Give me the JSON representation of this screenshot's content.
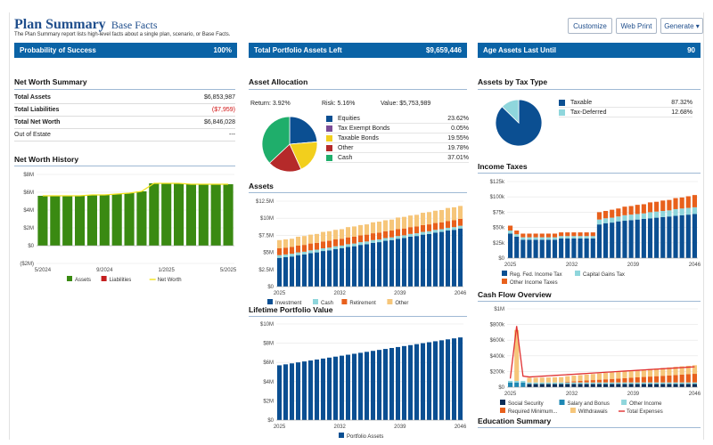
{
  "header": {
    "title": "Plan Summary",
    "subtitle": "Base Facts",
    "description": "The Plan Summary report lists high-level facts about a single plan, scenario, or Base Facts.",
    "buttons": {
      "customize": "Customize",
      "web_print": "Web Print",
      "generate": "Generate ▾"
    }
  },
  "kpis": [
    {
      "label": "Probability of Success",
      "value": "100%"
    },
    {
      "label": "Total Portfolio Assets Left",
      "value": "$9,659,446"
    },
    {
      "label": "Age Assets Last Until",
      "value": "90"
    }
  ],
  "net_worth_summary": {
    "title": "Net Worth Summary",
    "rows": [
      {
        "label": "Total Assets",
        "value": "$6,853,987"
      },
      {
        "label": "Total Liabilities",
        "value": "($7,959)"
      },
      {
        "label": "Total Net Worth",
        "value": "$6,846,028"
      },
      {
        "label": "Out of Estate",
        "value": "---"
      }
    ]
  },
  "asset_allocation": {
    "title": "Asset Allocation",
    "return_label": "Return: 3.92%",
    "risk_label": "Risk: 5.16%",
    "value_label": "Value: $5,753,989",
    "items": [
      {
        "name": "Equities",
        "pct": "23.62%",
        "value": 23.62,
        "color": "#0b4f92"
      },
      {
        "name": "Tax Exempt Bonds",
        "pct": "0.05%",
        "value": 0.05,
        "color": "#7b4c96"
      },
      {
        "name": "Taxable Bonds",
        "pct": "19.55%",
        "value": 19.55,
        "color": "#f2cf1d"
      },
      {
        "name": "Other",
        "pct": "19.78%",
        "value": 19.78,
        "color": "#b52a2a"
      },
      {
        "name": "Cash",
        "pct": "37.01%",
        "value": 37.01,
        "color": "#1fae6b"
      }
    ]
  },
  "assets_by_tax": {
    "title": "Assets by Tax Type",
    "items": [
      {
        "name": "Taxable",
        "pct": "87.32%",
        "value": 87.32,
        "color": "#0b4f92"
      },
      {
        "name": "Tax-Deferred",
        "pct": "12.68%",
        "value": 12.68,
        "color": "#8fd6dc"
      }
    ]
  },
  "sections": {
    "net_worth_history": "Net Worth History",
    "assets": "Assets",
    "lifetime_portfolio": "Lifetime Portfolio Value",
    "income_taxes": "Income Taxes",
    "cash_flow": "Cash Flow Overview",
    "education": "Education Summary"
  },
  "chart_data": [
    {
      "id": "net_worth_history",
      "type": "bar",
      "x_ticks": [
        "5/2024",
        "9/2024",
        "1/2025",
        "5/2025"
      ],
      "y_ticks": [
        "$8M",
        "$6M",
        "$4M",
        "$2M",
        "$0",
        "($2M)"
      ],
      "ylim": [
        -2,
        8
      ],
      "series": [
        {
          "name": "Assets",
          "color": "#3a8a12",
          "values": [
            5.6,
            5.6,
            5.6,
            5.6,
            5.7,
            5.7,
            5.8,
            5.9,
            6.1,
            7.0,
            7.0,
            7.0,
            6.9,
            6.9,
            6.9,
            6.9
          ]
        },
        {
          "name": "Liabilities",
          "color": "#c41e1e",
          "values": [
            0,
            0,
            0,
            0,
            0,
            0,
            0,
            0,
            0,
            0,
            0,
            0,
            0,
            0,
            0,
            0
          ]
        },
        {
          "name": "Net Worth",
          "color": "#f2e21d",
          "values": [
            5.6,
            5.6,
            5.6,
            5.6,
            5.7,
            5.7,
            5.8,
            5.9,
            6.1,
            7.0,
            7.0,
            7.0,
            6.9,
            6.9,
            6.9,
            6.9
          ]
        }
      ]
    },
    {
      "id": "assets",
      "type": "bar",
      "x_ticks": [
        "2025",
        "2032",
        "2039",
        "2046"
      ],
      "y_ticks": [
        "$12.5M",
        "$10M",
        "$7.5M",
        "$5M",
        "$2.5M",
        "$0"
      ],
      "ylim": [
        0,
        12.5
      ],
      "series": [
        {
          "name": "Investment",
          "color": "#0b4f92",
          "values": [
            4.2,
            4.3,
            4.4,
            4.6,
            4.7,
            4.9,
            5.0,
            5.2,
            5.3,
            5.5,
            5.6,
            5.8,
            5.9,
            6.1,
            6.2,
            6.4,
            6.5,
            6.7,
            6.8,
            7.0,
            7.1,
            7.3,
            7.4,
            7.6,
            7.7,
            7.9,
            8.0,
            8.2,
            8.3,
            8.5
          ]
        },
        {
          "name": "Cash",
          "color": "#8fd6dc",
          "values": [
            0.4,
            0.4,
            0.4,
            0.4,
            0.4,
            0.4,
            0.4,
            0.4,
            0.4,
            0.4,
            0.4,
            0.4,
            0.4,
            0.4,
            0.4,
            0.4,
            0.4,
            0.4,
            0.4,
            0.4,
            0.4,
            0.4,
            0.4,
            0.4,
            0.4,
            0.4,
            0.4,
            0.4,
            0.4,
            0.4
          ]
        },
        {
          "name": "Retirement",
          "color": "#e8601c",
          "values": [
            1.0,
            1.0,
            1.0,
            1.0,
            1.0,
            1.0,
            1.0,
            1.0,
            1.0,
            1.0,
            1.0,
            1.0,
            1.0,
            1.0,
            1.0,
            1.0,
            1.0,
            1.0,
            1.0,
            1.0,
            1.0,
            1.0,
            1.0,
            1.0,
            1.0,
            1.0,
            1.0,
            1.0,
            1.0,
            1.0
          ]
        },
        {
          "name": "Other",
          "color": "#f6c67a",
          "values": [
            1.2,
            1.2,
            1.2,
            1.3,
            1.3,
            1.3,
            1.3,
            1.4,
            1.4,
            1.4,
            1.4,
            1.5,
            1.5,
            1.5,
            1.5,
            1.6,
            1.6,
            1.6,
            1.6,
            1.7,
            1.7,
            1.7,
            1.7,
            1.8,
            1.8,
            1.8,
            1.8,
            1.9,
            1.9,
            1.9
          ]
        }
      ]
    },
    {
      "id": "lifetime_portfolio",
      "type": "bar",
      "x_ticks": [
        "2025",
        "2032",
        "2039",
        "2046"
      ],
      "y_ticks": [
        "$10M",
        "$8M",
        "$6M",
        "$4M",
        "$2M",
        "$0"
      ],
      "ylim": [
        0,
        10
      ],
      "series": [
        {
          "name": "Portfolio Assets",
          "color": "#0b4f92",
          "values": [
            5.7,
            5.8,
            5.9,
            6.0,
            6.1,
            6.2,
            6.3,
            6.4,
            6.5,
            6.6,
            6.7,
            6.8,
            6.9,
            7.0,
            7.1,
            7.2,
            7.3,
            7.4,
            7.5,
            7.6,
            7.7,
            7.8,
            7.9,
            8.0,
            8.1,
            8.2,
            8.3,
            8.4,
            8.5,
            8.6
          ]
        }
      ]
    },
    {
      "id": "income_taxes",
      "type": "bar",
      "x_ticks": [
        "2025",
        "2032",
        "2039",
        "2046"
      ],
      "y_ticks": [
        "$125k",
        "$100k",
        "$75k",
        "$50k",
        "$25k",
        "$0"
      ],
      "ylim": [
        0,
        125
      ],
      "series": [
        {
          "name": "Reg. Fed. Income Tax",
          "color": "#0b4f92",
          "values": [
            40,
            35,
            30,
            30,
            30,
            30,
            30,
            30,
            32,
            32,
            32,
            32,
            32,
            32,
            55,
            57,
            58,
            60,
            61,
            62,
            63,
            64,
            65,
            66,
            67,
            68,
            69,
            70,
            71,
            72
          ]
        },
        {
          "name": "Capital Gains Tax",
          "color": "#8fd6dc",
          "values": [
            5,
            4,
            4,
            4,
            4,
            4,
            4,
            4,
            4,
            4,
            4,
            4,
            4,
            4,
            8,
            8,
            8,
            8,
            9,
            9,
            9,
            9,
            10,
            10,
            10,
            10,
            11,
            11,
            11,
            11
          ]
        },
        {
          "name": "Other Income Taxes",
          "color": "#e8601c",
          "values": [
            8,
            6,
            6,
            6,
            6,
            6,
            6,
            6,
            6,
            6,
            6,
            6,
            6,
            6,
            12,
            12,
            13,
            13,
            14,
            14,
            15,
            15,
            16,
            16,
            17,
            17,
            18,
            18,
            19,
            20
          ]
        }
      ]
    },
    {
      "id": "cash_flow",
      "type": "bar",
      "x_ticks": [
        "2025",
        "2032",
        "2039",
        "2046"
      ],
      "y_ticks": [
        "$1M",
        "$800k",
        "$600k",
        "$400k",
        "$200k",
        "$0"
      ],
      "ylim": [
        0,
        1000
      ],
      "series": [
        {
          "name": "Social Security",
          "color": "#0b2d57",
          "values": [
            0,
            0,
            0,
            40,
            40,
            40,
            40,
            40,
            40,
            40,
            40,
            40,
            40,
            40,
            40,
            40,
            40,
            40,
            40,
            40,
            40,
            40,
            40,
            40,
            40,
            40,
            40,
            40,
            40,
            40
          ]
        },
        {
          "name": "Salary and Bonus",
          "color": "#1e88b4",
          "values": [
            60,
            60,
            60,
            0,
            0,
            0,
            0,
            0,
            0,
            0,
            0,
            0,
            0,
            0,
            0,
            0,
            0,
            0,
            0,
            0,
            0,
            0,
            0,
            0,
            0,
            0,
            0,
            0,
            0,
            0
          ]
        },
        {
          "name": "Other Income",
          "color": "#8fd6dc",
          "values": [
            20,
            20,
            20,
            20,
            20,
            20,
            20,
            20,
            20,
            20,
            20,
            20,
            20,
            20,
            20,
            20,
            20,
            20,
            20,
            20,
            20,
            20,
            20,
            20,
            20,
            20,
            20,
            20,
            20,
            20
          ]
        },
        {
          "name": "Required Minimum...",
          "color": "#e8601c",
          "values": [
            0,
            0,
            0,
            0,
            0,
            0,
            0,
            0,
            0,
            10,
            15,
            20,
            25,
            30,
            35,
            40,
            45,
            50,
            55,
            60,
            65,
            70,
            75,
            80,
            85,
            90,
            95,
            100,
            105,
            110
          ]
        },
        {
          "name": "Withdrawals",
          "color": "#f6c67a",
          "values": [
            0,
            650,
            0,
            60,
            60,
            62,
            64,
            66,
            68,
            70,
            72,
            74,
            76,
            78,
            80,
            82,
            84,
            86,
            88,
            90,
            92,
            94,
            96,
            98,
            100,
            102,
            104,
            106,
            108,
            110
          ]
        },
        {
          "name": "Total Expenses",
          "color": "#e03030",
          "values": [
            110,
            780,
            140,
            130,
            135,
            140,
            145,
            150,
            155,
            160,
            165,
            170,
            175,
            180,
            185,
            190,
            195,
            200,
            205,
            210,
            215,
            220,
            225,
            230,
            235,
            240,
            245,
            250,
            255,
            260
          ]
        }
      ]
    }
  ]
}
